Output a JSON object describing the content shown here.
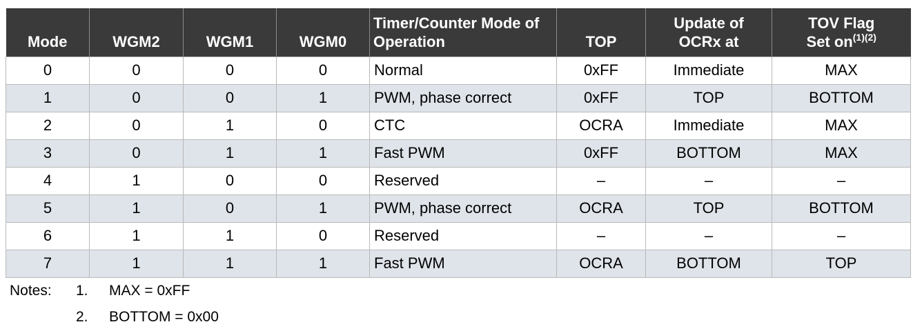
{
  "table": {
    "headers": {
      "mode": "Mode",
      "wgm2": "WGM2",
      "wgm1": "WGM1",
      "wgm0": "WGM0",
      "operation_line1": "Timer/Counter Mode of",
      "operation_line2": "Operation",
      "top": "TOP",
      "update_line1": "Update of",
      "update_line2": "OCRx at",
      "tov_line1": "TOV Flag",
      "tov_line2": "Set on",
      "tov_sup": "(1)(2)"
    },
    "rows": [
      {
        "mode": "0",
        "wgm2": "0",
        "wgm1": "0",
        "wgm0": "0",
        "operation": "Normal",
        "top": "0xFF",
        "update": "Immediate",
        "tov": "MAX"
      },
      {
        "mode": "1",
        "wgm2": "0",
        "wgm1": "0",
        "wgm0": "1",
        "operation": "PWM, phase correct",
        "top": "0xFF",
        "update": "TOP",
        "tov": "BOTTOM"
      },
      {
        "mode": "2",
        "wgm2": "0",
        "wgm1": "1",
        "wgm0": "0",
        "operation": "CTC",
        "top": "OCRA",
        "update": "Immediate",
        "tov": "MAX"
      },
      {
        "mode": "3",
        "wgm2": "0",
        "wgm1": "1",
        "wgm0": "1",
        "operation": "Fast PWM",
        "top": "0xFF",
        "update": "BOTTOM",
        "tov": "MAX"
      },
      {
        "mode": "4",
        "wgm2": "1",
        "wgm1": "0",
        "wgm0": "0",
        "operation": "Reserved",
        "top": "–",
        "update": "–",
        "tov": "–"
      },
      {
        "mode": "5",
        "wgm2": "1",
        "wgm1": "0",
        "wgm0": "1",
        "operation": "PWM, phase correct",
        "top": "OCRA",
        "update": "TOP",
        "tov": "BOTTOM"
      },
      {
        "mode": "6",
        "wgm2": "1",
        "wgm1": "1",
        "wgm0": "0",
        "operation": "Reserved",
        "top": "–",
        "update": "–",
        "tov": "–"
      },
      {
        "mode": "7",
        "wgm2": "1",
        "wgm1": "1",
        "wgm0": "1",
        "operation": "Fast PWM",
        "top": "OCRA",
        "update": "BOTTOM",
        "tov": "TOP"
      }
    ]
  },
  "notes": {
    "label": "Notes:",
    "items": [
      {
        "num": "1.",
        "text": "MAX = 0xFF"
      },
      {
        "num": "2.",
        "text": "BOTTOM = 0x00"
      }
    ]
  },
  "colors": {
    "header_bg": "#3a3a3a",
    "header_text": "#ffffff",
    "stripe_bg": "#dfe4ea",
    "grid_line": "#b8b8b8"
  }
}
